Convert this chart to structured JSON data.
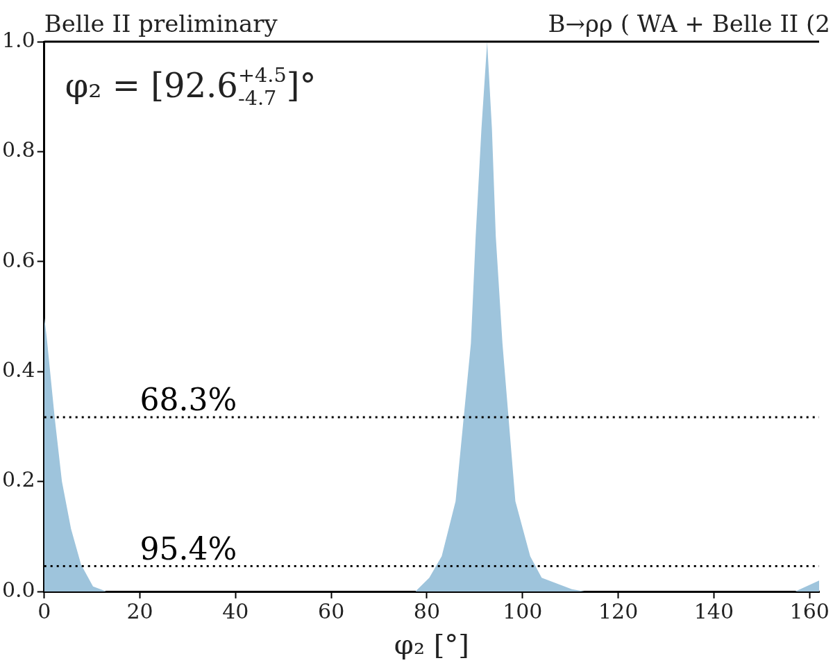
{
  "chart_data": {
    "type": "area",
    "title": "Belle II preliminary",
    "subtitle": "B→ρρ ( WA + Belle II (2",
    "xlabel": "φ₂ [°]",
    "annotations": [
      "φ₂ = [92.6$^{+4.5}$$_{-4.7}$]°",
      {
        "text": "68.3%",
        "x": 20,
        "y": 0.317
      },
      {
        "text": "95.4%",
        "x": 20,
        "y": 0.046
      }
    ],
    "series": [
      {
        "color": "#9ec4dc",
        "x": [
          0,
          0.5,
          2.2,
          3.7,
          5.6,
          7.7,
          10.2,
          13,
          77.6,
          80.5,
          83.1,
          86,
          89.2,
          90.2,
          91.4,
          92.6,
          93.6,
          94.4,
          95.8,
          98.5,
          101.6,
          104,
          110.3,
          113,
          157,
          162
        ],
        "values": [
          0.5,
          0.464,
          0.315,
          0.2,
          0.114,
          0.049,
          0.009,
          0,
          0,
          0.025,
          0.064,
          0.164,
          0.451,
          0.646,
          0.841,
          1,
          0.841,
          0.646,
          0.451,
          0.164,
          0.064,
          0.025,
          0.004,
          0,
          0,
          0.02
        ]
      }
    ],
    "ref_lines": [
      {
        "axis": "y",
        "value": 0.317,
        "color": "#000000",
        "line_style": "dotted"
      },
      {
        "axis": "y",
        "value": 0.046,
        "color": "#000000",
        "line_style": "dotted"
      }
    ],
    "xlim": [
      0,
      162
    ],
    "xticks": [
      0,
      20,
      40,
      60,
      80,
      100,
      120,
      140,
      160
    ],
    "ylim": [
      0,
      1
    ],
    "yticks": [
      {
        "value": 0,
        "label": "0.0"
      },
      0.2,
      0.4,
      0.6,
      0.8,
      {
        "value": 1,
        "label": "1.0"
      }
    ],
    "legend": false,
    "grid": false
  }
}
